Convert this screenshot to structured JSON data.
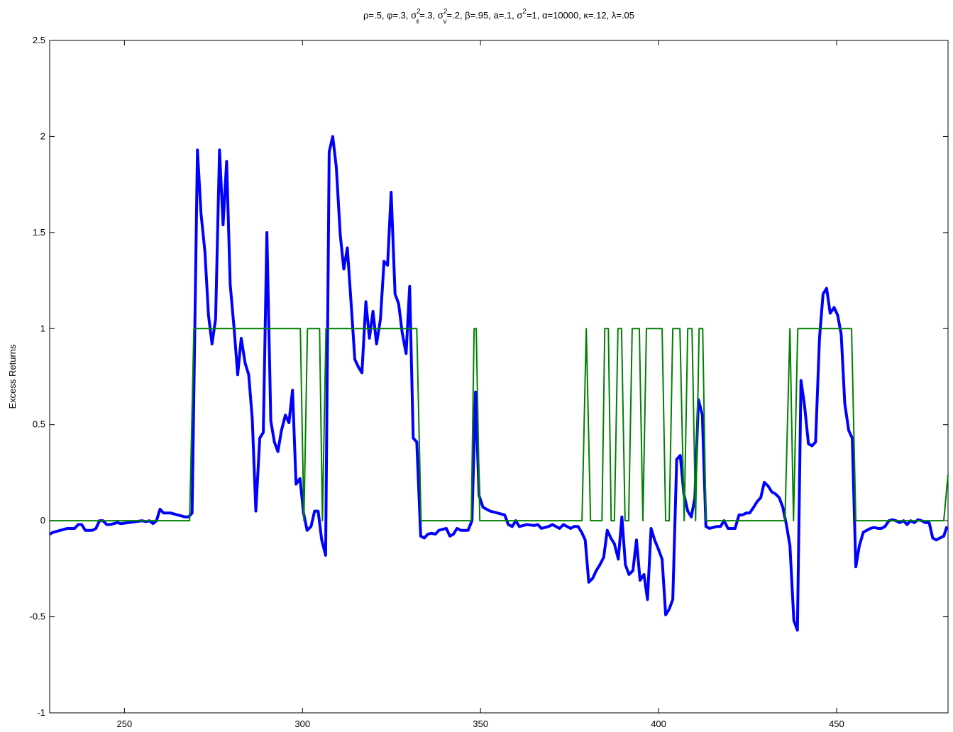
{
  "chart_data": {
    "type": "line",
    "title": [
      "ρ=.5, φ=.3, σ",
      {
        "sup": "2",
        "sub": "ε"
      },
      "=.3, σ",
      {
        "sup": "2",
        "sub": "ν"
      },
      "=.2, β=.95, a=.1, σ",
      {
        "sup": "2"
      },
      "=1, α=10000, κ=.12, λ=.05"
    ],
    "ylabel": "Excess Returns",
    "xlim": [
      229,
      481.3
    ],
    "xticks": [
      250,
      300,
      350,
      400,
      450
    ],
    "ylim": [
      -1,
      2.5
    ],
    "yticks": [
      -1,
      -0.5,
      0,
      0.5,
      1,
      1.5,
      2,
      2.5
    ],
    "grid": false,
    "series": [
      {
        "color": "#0000ff",
        "x": [
          229,
          230,
          232,
          234,
          236,
          237,
          238,
          239,
          241,
          242,
          243,
          244,
          245,
          246,
          248,
          249,
          251,
          253,
          255,
          256,
          257,
          258,
          259,
          260,
          261,
          263,
          265,
          267,
          268,
          269,
          270.5,
          271.5,
          272.6,
          273.6,
          274.6,
          275.6,
          276.7,
          277.7,
          278.7,
          279.7,
          280.8,
          281.8,
          282.8,
          283.9,
          284.9,
          285.9,
          286.9,
          288,
          289,
          290,
          291.1,
          292.1,
          293.1,
          294.1,
          295.2,
          296.2,
          297.2,
          298.2,
          299.3,
          300.3,
          301.3,
          302.4,
          303.4,
          304.4,
          305.4,
          306.5,
          307.5,
          308.5,
          309.5,
          310.6,
          311.6,
          312.6,
          313.7,
          314.7,
          315.7,
          316.7,
          317.8,
          318.8,
          319.8,
          320.8,
          321.9,
          322.9,
          323.9,
          324.9,
          326,
          327,
          328,
          329.1,
          330.1,
          331.1,
          332.1,
          333.2,
          334.2,
          335.2,
          336.2,
          337.3,
          338.3,
          339.3,
          340.4,
          341.4,
          342.4,
          343.4,
          344.5,
          346.5,
          347.6,
          348.6,
          349.6,
          350.7,
          352.7,
          354.8,
          356.8,
          357.8,
          358.9,
          359.9,
          360.9,
          363,
          365,
          366.1,
          367.1,
          369.1,
          370.2,
          371.2,
          372.2,
          373.3,
          374.3,
          375.3,
          376.3,
          377.4,
          378.4,
          379.4,
          380.4,
          381.5,
          382.5,
          383.5,
          384.6,
          385.6,
          386.6,
          387.6,
          388.7,
          389.7,
          390.7,
          391.7,
          392.8,
          393.8,
          394.8,
          395.9,
          396.9,
          397.9,
          398.9,
          400,
          401,
          402,
          403,
          404,
          405.1,
          406.1,
          407.1,
          408.2,
          409.2,
          410.2,
          411.2,
          412.3,
          413.3,
          414.3,
          416.4,
          417.4,
          418.4,
          419.5,
          421.5,
          422.6,
          423.6,
          424.6,
          425.6,
          426.7,
          427.7,
          428.7,
          429.7,
          430.8,
          431.8,
          432.8,
          433.9,
          434.9,
          435.9,
          436.9,
          438,
          439,
          440,
          441,
          442.1,
          443.1,
          444.1,
          445.2,
          446.2,
          447.2,
          448.2,
          449.3,
          450.3,
          451.3,
          452.3,
          453.4,
          454.4,
          455.4,
          456.4,
          457.5,
          458.5,
          459.5,
          460.6,
          461.6,
          462.6,
          463.6,
          464.7,
          465.7,
          466.7,
          467.7,
          468.8,
          469.8,
          470.8,
          471.8,
          472.9,
          473.9,
          474.9,
          476,
          477,
          478,
          479,
          480.1,
          481
        ],
        "values": [
          -0.07,
          -0.06,
          -0.05,
          -0.04,
          -0.04,
          -0.02,
          -0.02,
          -0.05,
          -0.05,
          -0.04,
          0,
          0,
          -0.02,
          -0.02,
          -0.01,
          -0.015,
          -0.01,
          -0.005,
          0,
          -0.005,
          0,
          -0.015,
          0,
          0.06,
          0.04,
          0.04,
          0.03,
          0.02,
          0.02,
          0.04,
          1.93,
          1.6,
          1.4,
          1.07,
          0.92,
          1.05,
          1.93,
          1.54,
          1.87,
          1.23,
          1.0,
          0.76,
          0.95,
          0.82,
          0.76,
          0.53,
          0.05,
          0.43,
          0.46,
          1.5,
          0.52,
          0.41,
          0.36,
          0.47,
          0.55,
          0.51,
          0.68,
          0.19,
          0.22,
          0.04,
          -0.05,
          -0.03,
          0.05,
          0.05,
          -0.1,
          -0.18,
          1.92,
          2.0,
          1.84,
          1.49,
          1.31,
          1.42,
          1.12,
          0.84,
          0.8,
          0.77,
          1.14,
          0.95,
          1.09,
          0.92,
          1.05,
          1.35,
          1.33,
          1.71,
          1.18,
          1.13,
          0.98,
          0.87,
          1.22,
          0.43,
          0.41,
          -0.08,
          -0.09,
          -0.07,
          -0.065,
          -0.07,
          -0.05,
          -0.045,
          -0.04,
          -0.08,
          -0.07,
          -0.04,
          -0.05,
          -0.05,
          0,
          0.67,
          0.13,
          0.07,
          0.05,
          0.04,
          0.03,
          -0.02,
          -0.03,
          0,
          -0.03,
          -0.02,
          -0.025,
          -0.02,
          -0.04,
          -0.03,
          -0.02,
          -0.03,
          -0.04,
          -0.02,
          -0.03,
          -0.04,
          -0.03,
          -0.03,
          -0.06,
          -0.1,
          -0.32,
          -0.3,
          -0.26,
          -0.23,
          -0.19,
          -0.05,
          -0.09,
          -0.12,
          -0.2,
          0.02,
          -0.23,
          -0.28,
          -0.26,
          -0.1,
          -0.31,
          -0.28,
          -0.41,
          -0.04,
          -0.1,
          -0.15,
          -0.2,
          -0.49,
          -0.46,
          -0.41,
          0.32,
          0.34,
          0.14,
          0.05,
          0.02,
          0.12,
          0.63,
          0.55,
          -0.03,
          -0.04,
          -0.03,
          -0.03,
          0,
          -0.04,
          -0.04,
          0.03,
          0.03,
          0.04,
          0.04,
          0.07,
          0.1,
          0.12,
          0.2,
          0.18,
          0.15,
          0.14,
          0.12,
          0.07,
          -0.02,
          -0.13,
          -0.52,
          -0.57,
          0.73,
          0.6,
          0.4,
          0.39,
          0.41,
          0.95,
          1.18,
          1.21,
          1.08,
          1.11,
          1.07,
          0.97,
          0.61,
          0.47,
          0.43,
          -0.24,
          -0.13,
          -0.06,
          -0.05,
          -0.04,
          -0.035,
          -0.04,
          -0.04,
          -0.03,
          0,
          0.005,
          0,
          -0.01,
          0,
          -0.02,
          0,
          -0.01,
          0.005,
          0,
          -0.01,
          -0.01,
          -0.09,
          -0.1,
          -0.09,
          -0.08,
          -0.03
        ]
      },
      {
        "color": "#008000",
        "x": [
          229,
          268.3,
          269.5,
          299.4,
          300.4,
          301.4,
          304.8,
          305.6,
          306.6,
          332.1,
          333.3,
          347.4,
          348.2,
          348.8,
          349.8,
          378.5,
          379.7,
          380.9,
          384.1,
          384.9,
          385.9,
          386.7,
          387.6,
          388.6,
          389.6,
          390.6,
          391.6,
          392.6,
          394.6,
          395.6,
          396.6,
          401,
          402,
          403,
          404,
          406,
          407.2,
          408.2,
          409.4,
          410.4,
          411.4,
          412.4,
          413.3,
          435.5,
          436.9,
          437.9,
          439.1,
          454.2,
          455.4,
          480.1,
          481.3
        ],
        "values": [
          0,
          0,
          1,
          1,
          0,
          1,
          1,
          0,
          1,
          1,
          0,
          0,
          1,
          1,
          0,
          0,
          1,
          0,
          0,
          1,
          1,
          0,
          0,
          1,
          1,
          0,
          0,
          1,
          1,
          0,
          1,
          1,
          0,
          0,
          1,
          1,
          0,
          1,
          1,
          0,
          1,
          1,
          0,
          0,
          1,
          0,
          1,
          1,
          0,
          0,
          0.24
        ]
      }
    ]
  }
}
